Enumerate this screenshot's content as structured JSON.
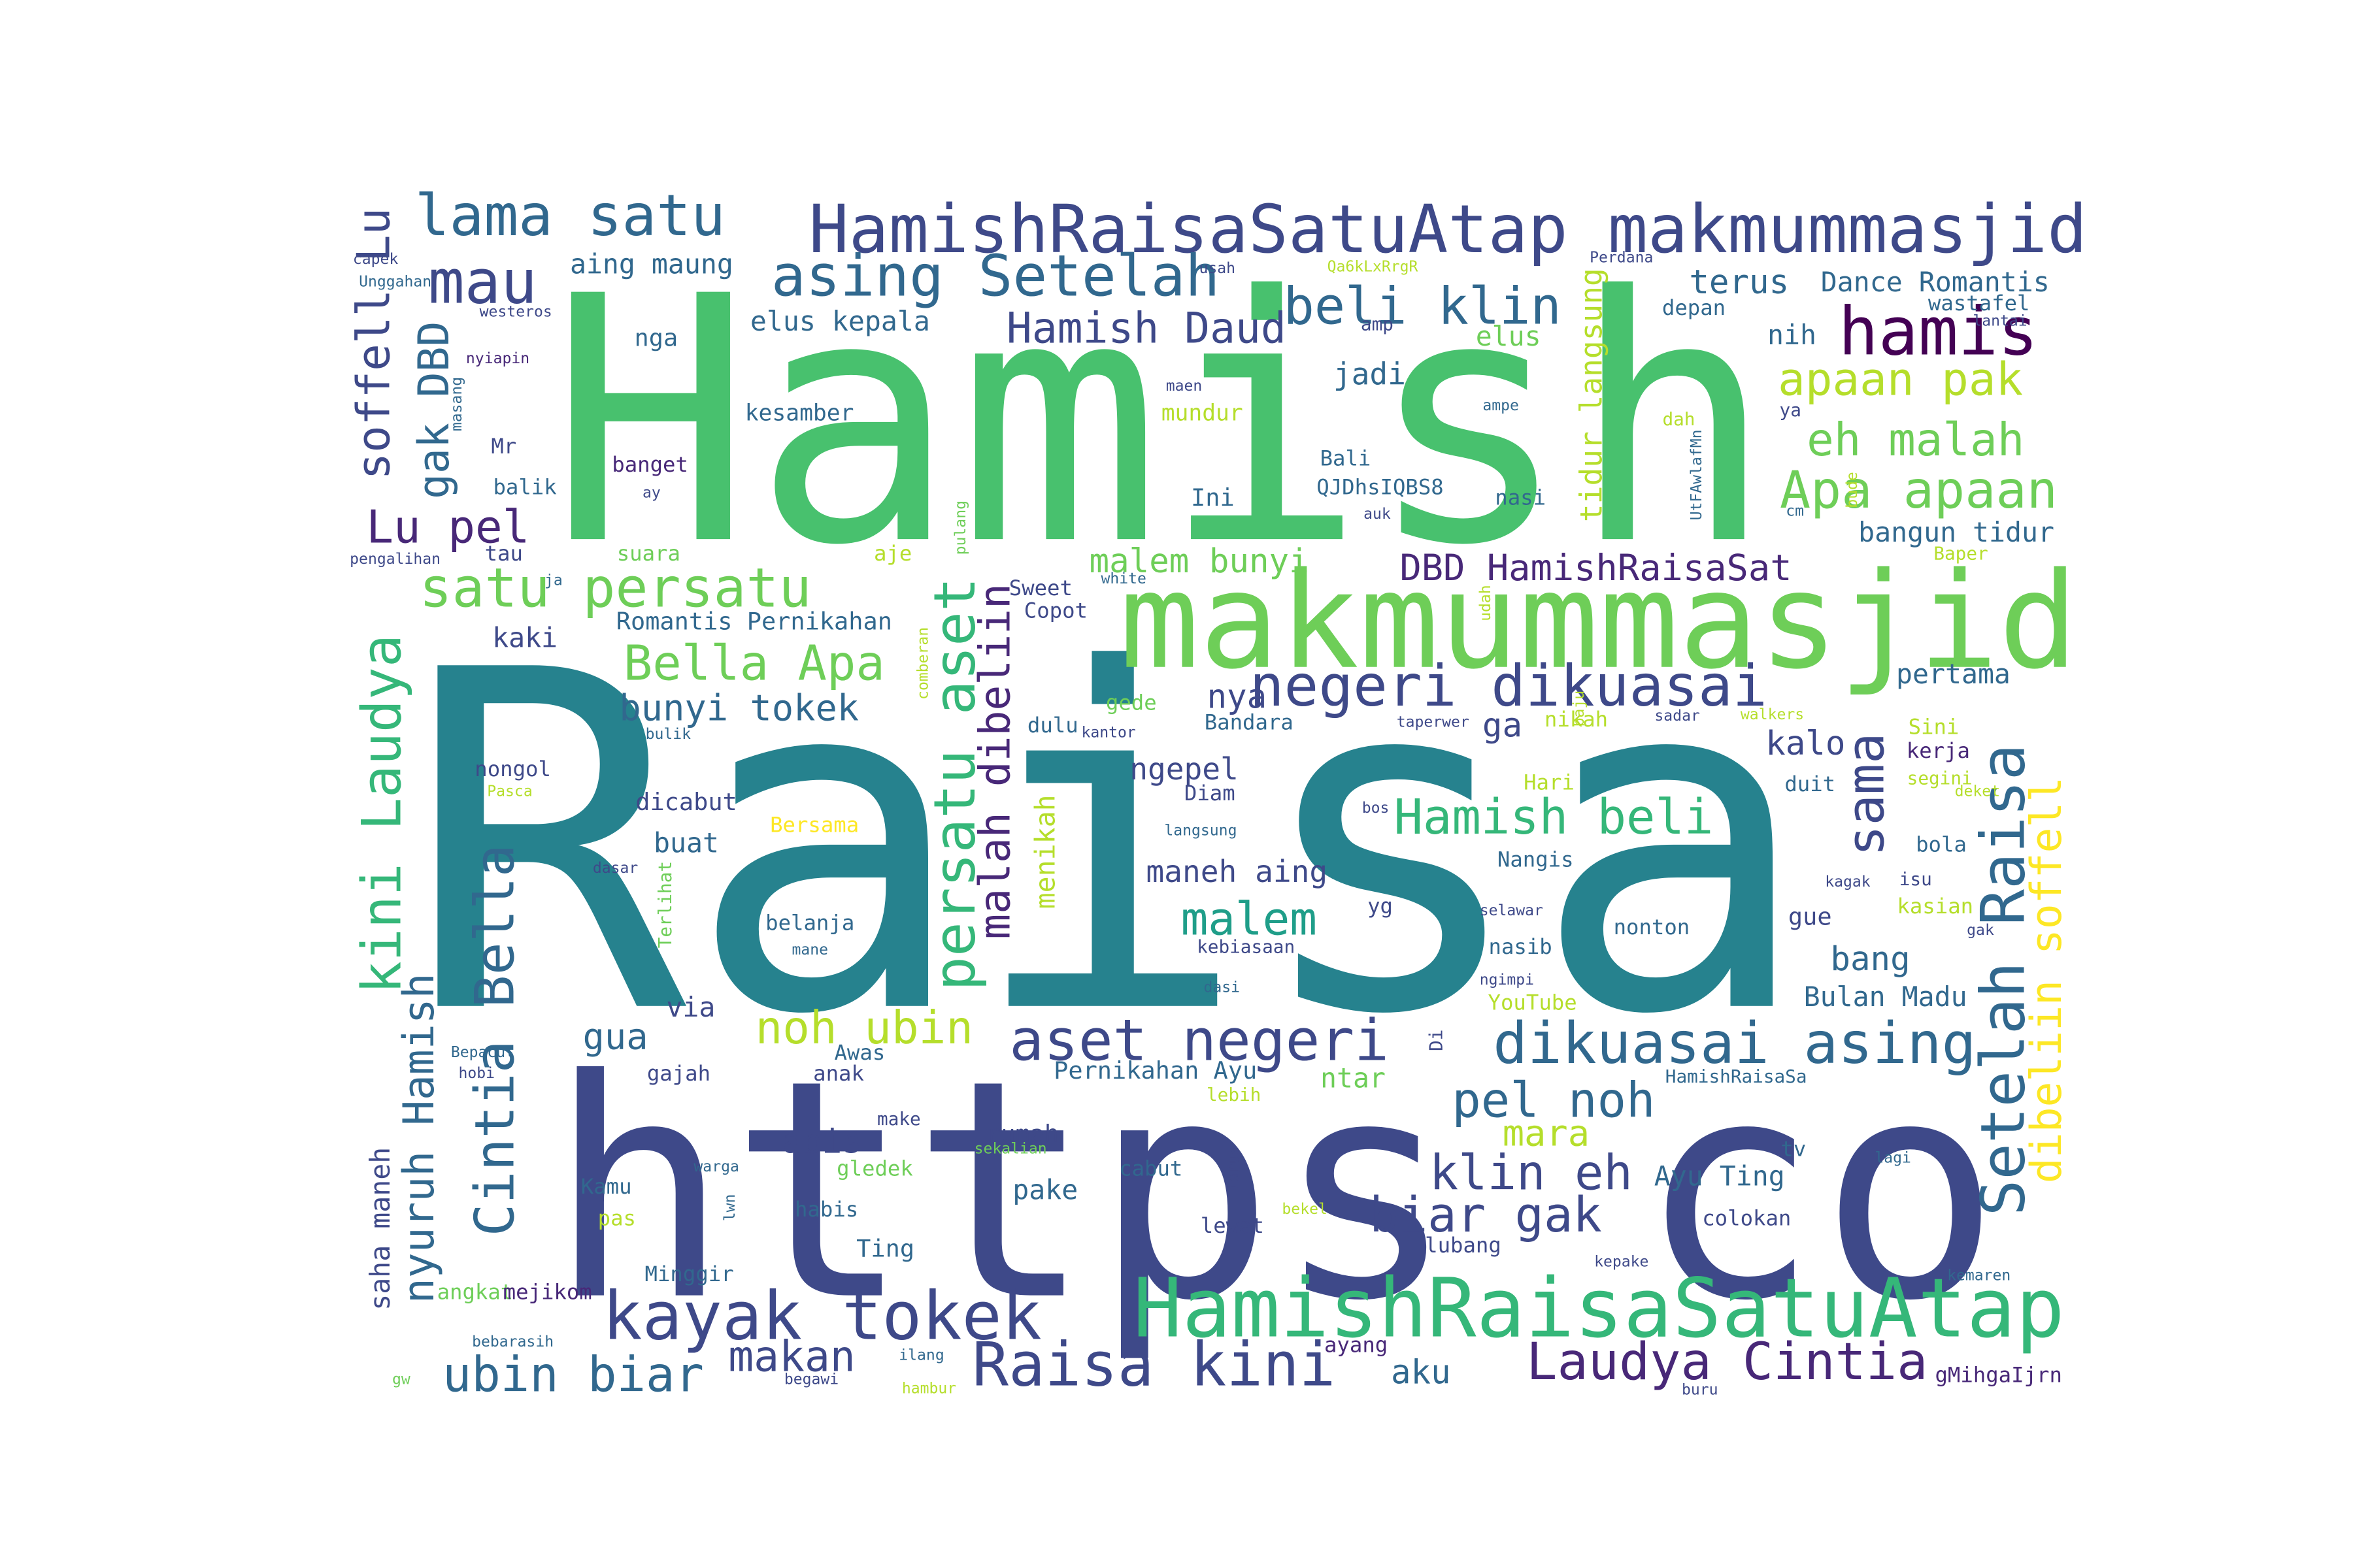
{
  "words": [
    "Raisa",
    "https co",
    "Hamish",
    "makmummasjid",
    "HamishRaisaSatuAtap makmummasjid",
    "HamishRaisaSatuAtap",
    "kayak tokek",
    "Raisa kini",
    "Laudya Cintia",
    "ubin biar",
    "makan",
    "aku",
    "dikuasai asing",
    "aset negeri",
    "negeri dikuasai",
    "pel noh",
    "klin eh",
    "biar gak",
    "mara",
    "noh ubin",
    "malem",
    "Hamish beli",
    "Bella Apa",
    "satu persatu",
    "asing Setelah",
    "lama satu",
    "mau",
    "hamis",
    "beli klin",
    "Hamish Daud",
    "elus kepala",
    "aing maung",
    "terus",
    "Dance Romantis",
    "wastafel",
    "apaan pak",
    "eh malah",
    "Apa apaan",
    "bangun tidur",
    "DBD HamishRaisaSat",
    "malem bunyi",
    "soffell Lu",
    "gak DBD",
    "Lu pel",
    "kini Laudya",
    "Cintia Bella",
    "nyuruh Hamish",
    "saha maneh",
    "persatu aset",
    "malah dibeliin",
    "Setelah Raisa",
    "sama",
    "dibeliin soffell",
    "tidur langsung",
    "menikah",
    "bunyi tokek",
    "nya",
    "ga",
    "kalo",
    "pertama",
    "Romantis Pernikahan",
    "kaki",
    "ngepel",
    "maneh aing",
    "jadi",
    "nih",
    "elus",
    "depan",
    "nga",
    "kesamber",
    "mundur",
    "Bali",
    "QJDhsIQBS8",
    "Ini",
    "nasi",
    "banget",
    "balik",
    "Mr",
    "suara",
    "tau",
    "aje",
    "Sweet",
    "Copot",
    "dulu",
    "Bandara",
    "gede",
    "nikah",
    "Sini",
    "kerja",
    "segini",
    "duit",
    "Hari",
    "Diam",
    "nongol",
    "dicabut",
    "buat",
    "Bersama",
    "Nangis",
    "yg",
    "bola",
    "isu",
    "kasian",
    "gue",
    "nonton",
    "nasib",
    "belanja",
    "kebiasaan",
    "bang",
    "Bulan Madu",
    "YouTube",
    "via",
    "gua",
    "Awas",
    "anak",
    "gajah",
    "Pernikahan Ayu",
    "ntar",
    "HamishRaisaSa",
    "abis",
    "rumah",
    "cabut",
    "pake",
    "habis",
    "gledek",
    "Ayu Ting",
    "tv",
    "colokan",
    "lubang",
    "Ting",
    "lewat",
    "Kamu",
    "pas",
    "Minggir",
    "angkat",
    "mejikom",
    "gMihgaIjrn",
    "ayang",
    "make",
    "lebih",
    "capek",
    "Unggahan",
    "westeros",
    "nyiapin",
    "masang",
    "pengalihan",
    "ja",
    "usah",
    "Qa6kLxRrgR",
    "Perdana",
    "lantai",
    "amp",
    "maen",
    "ampe",
    "dah",
    "ya",
    "pulang",
    "ay",
    "auk",
    "bude",
    "cm",
    "Baper",
    "UtFAwlafMn",
    "white",
    "udah",
    "comberan",
    "bulik",
    "kantor",
    "taperwer",
    "baju",
    "sadar",
    "walkers",
    "deket",
    "Pasca",
    "bos",
    "langsung",
    "Terlihat",
    "dasar",
    "kagak",
    "selawar",
    "gak",
    "mane",
    "dasi",
    "ngimpi",
    "Di",
    "Bepacul",
    "hobi",
    "sekalian",
    "warga",
    "lwn",
    "tarus",
    "lagi",
    "bekel",
    "kepake",
    "kemaren",
    "bebarasih",
    "gw",
    "begawi",
    "ilang",
    "hambur",
    "buru"
  ]
}
